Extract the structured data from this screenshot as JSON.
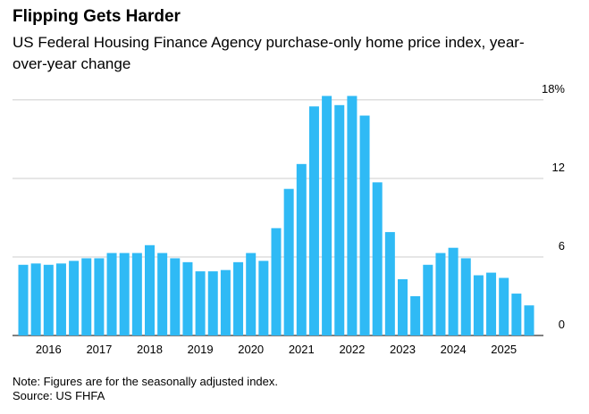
{
  "chart_data": {
    "type": "bar",
    "title": "Flipping Gets Harder",
    "subtitle": "US Federal Housing Finance Agency purchase-only home price index, year-over-year change",
    "note": "Note: Figures are for the seasonally adjusted index.",
    "source": "Source: US FHFA",
    "categories": [
      null,
      null,
      "2016",
      null,
      null,
      null,
      "2017",
      null,
      null,
      null,
      "2018",
      null,
      null,
      null,
      "2019",
      null,
      null,
      null,
      "2020",
      null,
      null,
      null,
      "2021",
      null,
      null,
      null,
      "2022",
      null,
      null,
      null,
      "2023",
      null,
      null,
      null,
      "2024",
      null,
      null,
      null,
      "2025",
      null,
      null
    ],
    "values": [
      5.4,
      5.5,
      5.4,
      5.5,
      5.7,
      5.9,
      5.9,
      6.3,
      6.3,
      6.3,
      6.9,
      6.3,
      5.9,
      5.6,
      4.9,
      4.9,
      5.0,
      5.6,
      6.3,
      5.7,
      8.2,
      11.2,
      13.1,
      17.5,
      18.3,
      17.6,
      18.3,
      16.8,
      11.7,
      7.9,
      4.3,
      3.0,
      5.4,
      6.3,
      6.7,
      5.9,
      4.6,
      4.8,
      4.4,
      3.2,
      2.3
    ],
    "color": "#2fbaf5",
    "ylim": [
      0,
      18.5
    ],
    "yticks": [
      0,
      6,
      12,
      {
        "value": 18,
        "label": "18%"
      }
    ],
    "grid": true
  }
}
